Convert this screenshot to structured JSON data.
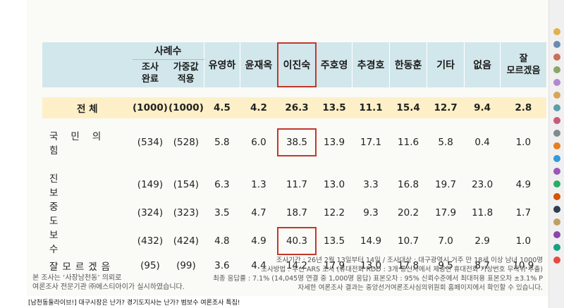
{
  "header": {
    "sample_group": "사례수",
    "sample_cols": [
      "조사\n완료",
      "가중값\n적용"
    ],
    "candidates": [
      "유영하",
      "윤재옥",
      "이진숙",
      "주호영",
      "추경호",
      "한동훈",
      "기타",
      "없음",
      "잘\n모르겠음"
    ]
  },
  "rows": [
    {
      "label": "전 체",
      "n": "(1000)",
      "w": "(1000)",
      "vals": [
        "4.5",
        "4.2",
        "26.3",
        "13.5",
        "11.1",
        "15.4",
        "12.7",
        "9.4",
        "2.8"
      ]
    },
    {
      "label": "국민의힘",
      "n": "(534)",
      "w": "(528)",
      "vals": [
        "5.8",
        "6.0",
        "38.5",
        "13.9",
        "17.1",
        "11.6",
        "5.8",
        "0.4",
        "1.0"
      ]
    },
    {
      "label": "진보",
      "n": "(149)",
      "w": "(154)",
      "vals": [
        "6.3",
        "1.3",
        "11.7",
        "13.0",
        "3.3",
        "16.8",
        "19.7",
        "23.0",
        "4.9"
      ]
    },
    {
      "label": "중도",
      "n": "(324)",
      "w": "(323)",
      "vals": [
        "3.5",
        "4.7",
        "18.7",
        "12.2",
        "9.3",
        "20.2",
        "17.9",
        "11.8",
        "1.7"
      ]
    },
    {
      "label": "보수",
      "n": "(432)",
      "w": "(424)",
      "vals": [
        "4.8",
        "4.9",
        "40.3",
        "13.5",
        "14.9",
        "10.7",
        "7.0",
        "2.9",
        "1.0"
      ]
    },
    {
      "label": "잘모르겠음",
      "n": "(95)",
      "w": "(99)",
      "vals": [
        "3.6",
        "4.4",
        "14.2",
        "17.9",
        "13.0",
        "17.8",
        "9.5",
        "8.7",
        "10.9"
      ]
    }
  ],
  "notes": [
    "조사기간 : 26년 2월 13일부터 14일 / 조사대상 : 대구광역시 거주 만 18세 이상 남녀 1000명",
    "조사방법 : 무선 ARS 조사 (휴대전화 RDD : 3개 통신사에서 제공한 휴대전화 가상번호 무작위 추출)",
    "최종 응답률 : 7.1% (14,045명 연결 중 1,000명 응답) 표본오차 : 95% 신뢰수준에서 최대허용 표본오차 ±3.1% P",
    "자세한 여론조사 결과는 중앙선거여론조사심의위원회 홈페이지에서 확인할 수 있습니다."
  ],
  "source": [
    "본 조사는 ‘사장남천동’ 의뢰로",
    "여론조사 전문기관 ㈜에스티아이가 실시하였습니다."
  ],
  "caption": "[남천동둘라이브!] 대구시장은 난가? 경기도지사는 난가? 범보수 여론조사 특집!",
  "colors": {
    "header_bg": "#d2e7ec",
    "total_bg": "#fdf0c8",
    "highlight": "#c0392b"
  }
}
